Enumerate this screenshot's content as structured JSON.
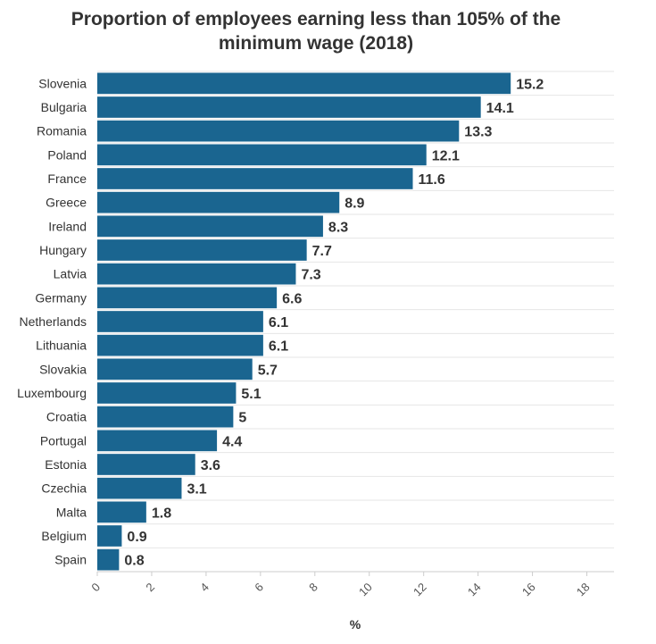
{
  "chart_data": {
    "type": "bar",
    "orientation": "horizontal",
    "title_lines": [
      "Proportion of employees earning less than 105% of the",
      "minimum wage (2018)"
    ],
    "xlabel": "%",
    "ylabel": "",
    "xlim": [
      0,
      19
    ],
    "x_ticks": [
      0,
      2,
      4,
      6,
      8,
      10,
      12,
      14,
      16,
      18
    ],
    "grid": true,
    "categories": [
      "Slovenia",
      "Bulgaria",
      "Romania",
      "Poland",
      "France",
      "Greece",
      "Ireland",
      "Hungary",
      "Latvia",
      "Germany",
      "Netherlands",
      "Lithuania",
      "Slovakia",
      "Luxembourg",
      "Croatia",
      "Portugal",
      "Estonia",
      "Czechia",
      "Malta",
      "Belgium",
      "Spain"
    ],
    "values": [
      15.2,
      14.1,
      13.3,
      12.1,
      11.6,
      8.9,
      8.3,
      7.7,
      7.3,
      6.6,
      6.1,
      6.1,
      5.7,
      5.1,
      5,
      4.4,
      3.6,
      3.1,
      1.8,
      0.9,
      0.8
    ],
    "bar_color": "#1a6590",
    "grid_color": "#e6e6e6"
  }
}
